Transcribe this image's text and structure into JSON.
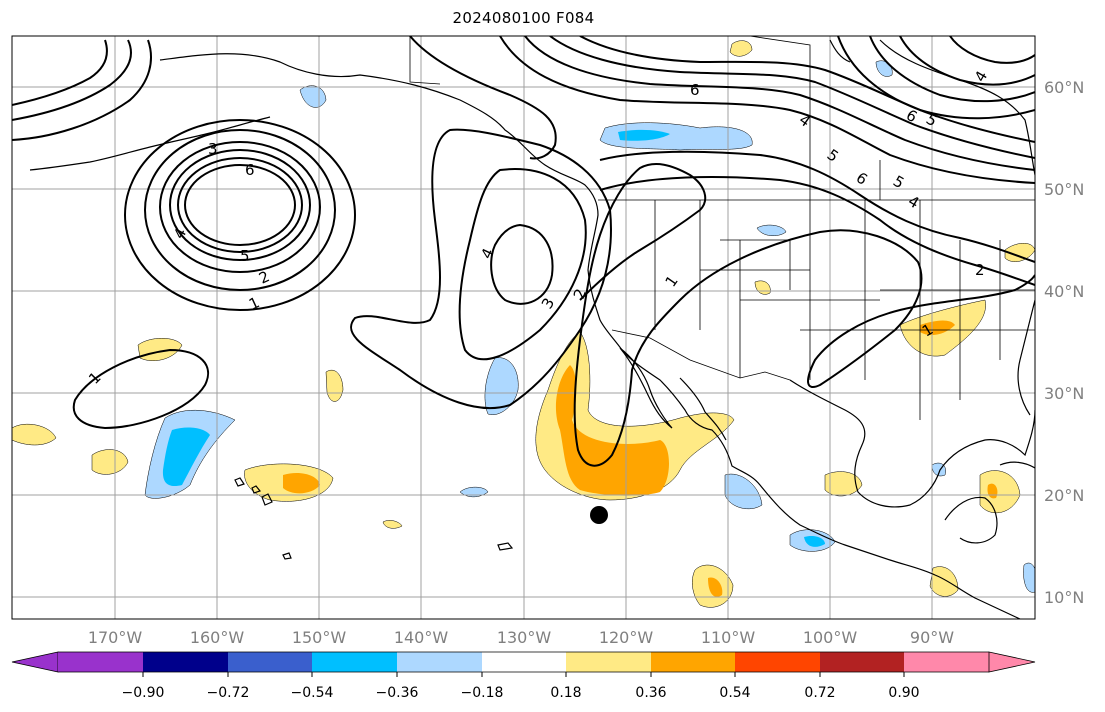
{
  "title": "2024080100 F084",
  "colors": {
    "neg_090": "#9932cc",
    "neg_072": "#00008b",
    "neg_054": "#3a5fcd",
    "neg_036": "#00bfff",
    "neg_018": "#add8ff",
    "neutral": "#ffffff",
    "pos_018": "#ffea85",
    "pos_036": "#ffa500",
    "pos_054": "#ff4500",
    "pos_072": "#b22222",
    "pos_090": "#ff88aa"
  },
  "lon_labels": [
    "170°W",
    "160°W",
    "150°W",
    "140°W",
    "130°W",
    "120°W",
    "110°W",
    "100°W",
    "90°W"
  ],
  "lat_labels": [
    "60°N",
    "50°N",
    "40°N",
    "30°N",
    "20°N",
    "10°N"
  ],
  "colorbar_ticks": [
    "−0.90",
    "−0.72",
    "−0.54",
    "−0.36",
    "−0.18",
    "0.18",
    "0.36",
    "0.54",
    "0.72",
    "0.90"
  ],
  "contour_labels": [
    "1",
    "2",
    "3",
    "4",
    "5",
    "6",
    "1",
    "2",
    "3",
    "4",
    "1",
    "1",
    "2",
    "4",
    "5",
    "6",
    "4",
    "6",
    "5",
    "4",
    "5",
    "6"
  ],
  "marker": "storm-center-dot"
}
